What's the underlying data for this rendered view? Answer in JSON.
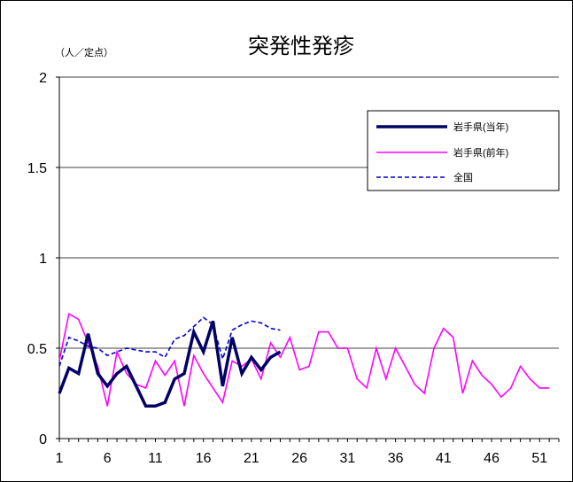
{
  "chart_data": {
    "type": "line",
    "title": "突発性発疹",
    "ylabel": "（人／定点）",
    "xlabel": "",
    "ylim": [
      0,
      2
    ],
    "xlim": [
      1,
      53
    ],
    "yticks": [
      0,
      0.5,
      1,
      1.5,
      2
    ],
    "ytick_labels": [
      "0",
      "0.5",
      "1",
      "1.5",
      "2"
    ],
    "xticks": [
      1,
      6,
      11,
      16,
      21,
      26,
      31,
      36,
      41,
      46,
      51
    ],
    "xtick_labels": [
      "1",
      "6",
      "11",
      "16",
      "21",
      "26",
      "31",
      "36",
      "41",
      "46",
      "51"
    ],
    "grid": "horizontal",
    "legend_position": "top-right",
    "series": [
      {
        "name": "岩手県(当年)",
        "color": "#000066",
        "style": "solid-thick",
        "x": [
          1,
          2,
          3,
          4,
          5,
          6,
          7,
          8,
          9,
          10,
          11,
          12,
          13,
          14,
          15,
          16,
          17,
          18,
          19,
          20,
          21,
          22,
          23,
          24
        ],
        "values": [
          0.25,
          0.39,
          0.36,
          0.58,
          0.36,
          0.29,
          0.36,
          0.4,
          0.29,
          0.18,
          0.18,
          0.2,
          0.33,
          0.36,
          0.59,
          0.48,
          0.65,
          0.29,
          0.56,
          0.36,
          0.45,
          0.38,
          0.45,
          0.48
        ]
      },
      {
        "name": "岩手県(前年)",
        "color": "#ff00ff",
        "style": "solid",
        "x": [
          1,
          2,
          3,
          4,
          5,
          6,
          7,
          8,
          9,
          10,
          11,
          12,
          13,
          14,
          15,
          16,
          17,
          18,
          19,
          20,
          21,
          22,
          23,
          24,
          25,
          26,
          27,
          28,
          29,
          30,
          31,
          32,
          33,
          34,
          35,
          36,
          37,
          38,
          39,
          40,
          41,
          42,
          43,
          44,
          45,
          46,
          47,
          48,
          49,
          50,
          51,
          52
        ],
        "values": [
          0.43,
          0.69,
          0.66,
          0.53,
          0.4,
          0.18,
          0.48,
          0.36,
          0.3,
          0.28,
          0.43,
          0.35,
          0.43,
          0.18,
          0.46,
          0.36,
          0.28,
          0.2,
          0.43,
          0.4,
          0.44,
          0.33,
          0.53,
          0.45,
          0.56,
          0.38,
          0.4,
          0.59,
          0.59,
          0.5,
          0.5,
          0.33,
          0.28,
          0.5,
          0.33,
          0.5,
          0.4,
          0.3,
          0.25,
          0.5,
          0.61,
          0.56,
          0.25,
          0.43,
          0.35,
          0.3,
          0.23,
          0.28,
          0.4,
          0.33,
          0.28,
          0.28
        ]
      },
      {
        "name": "全国",
        "color": "#0000cc",
        "style": "dashed",
        "x": [
          1,
          2,
          3,
          4,
          5,
          6,
          7,
          8,
          9,
          10,
          11,
          12,
          13,
          14,
          15,
          16,
          17,
          18,
          19,
          20,
          21,
          22,
          23,
          24
        ],
        "values": [
          0.4,
          0.56,
          0.54,
          0.51,
          0.5,
          0.46,
          0.48,
          0.5,
          0.49,
          0.48,
          0.48,
          0.45,
          0.55,
          0.57,
          0.62,
          0.67,
          0.63,
          0.44,
          0.6,
          0.63,
          0.65,
          0.64,
          0.61,
          0.6
        ]
      }
    ]
  }
}
